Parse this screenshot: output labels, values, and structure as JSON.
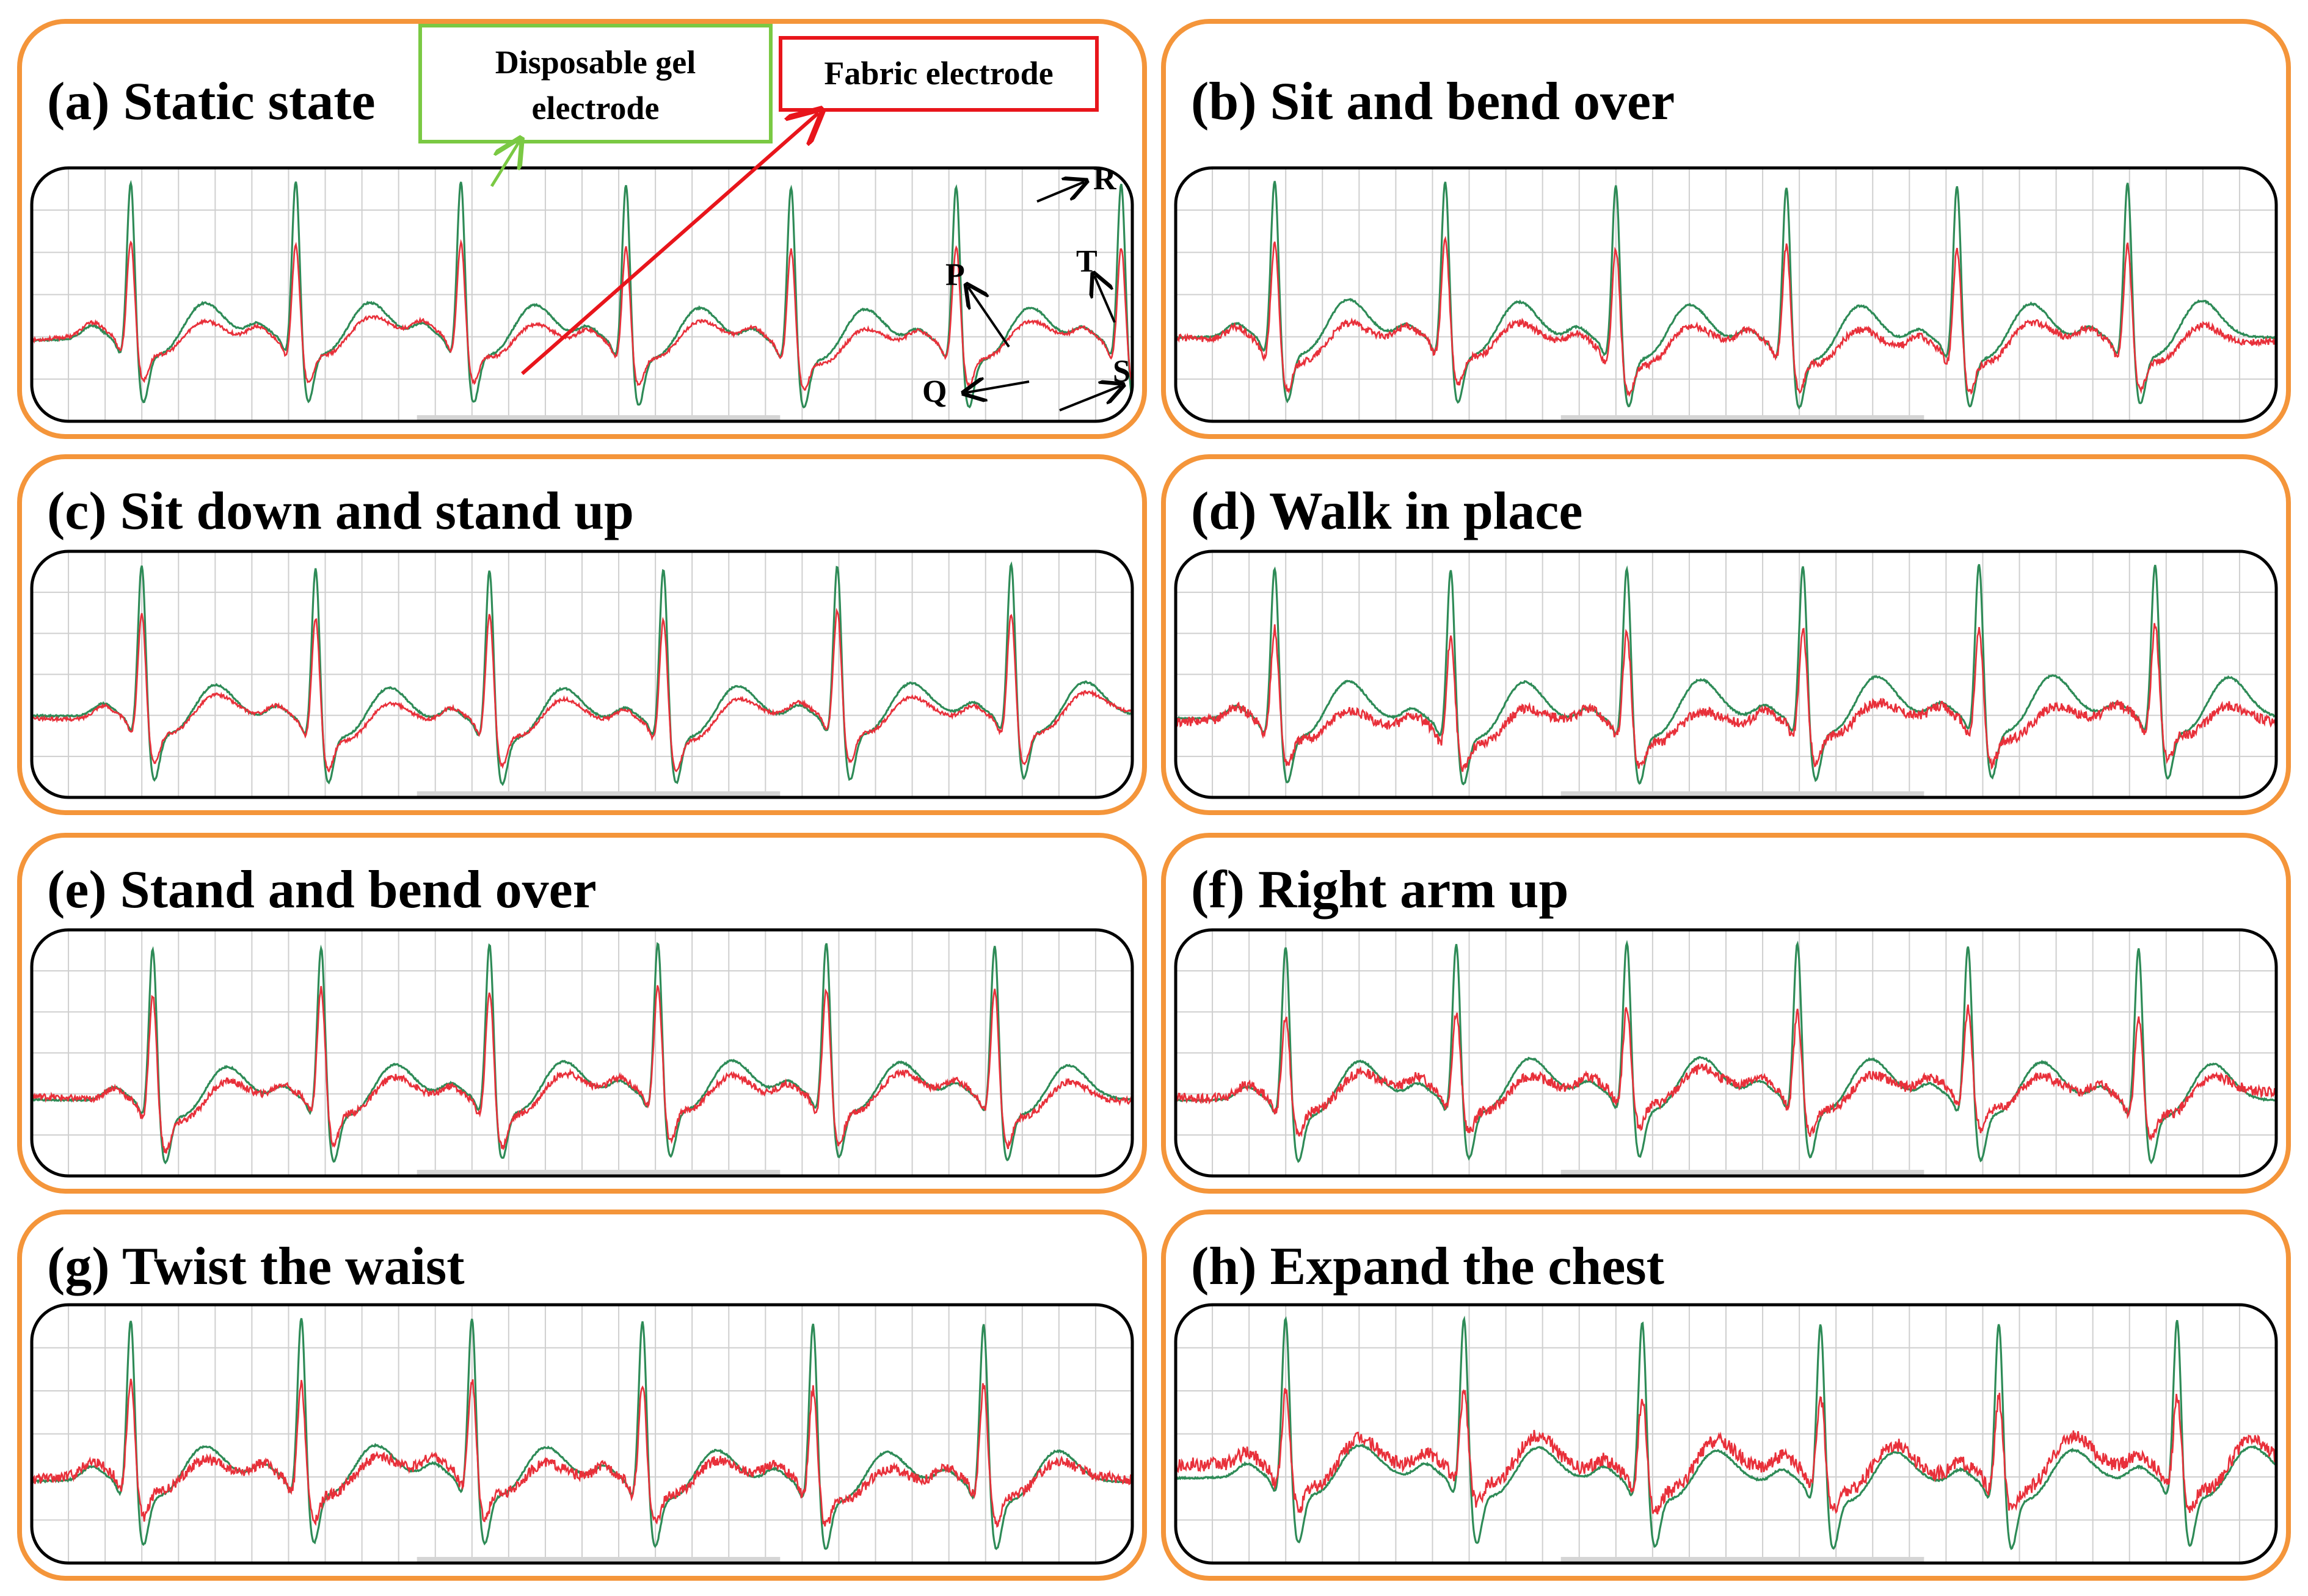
{
  "chart_data": [
    {
      "type": "line",
      "panel": "a",
      "title": "(a) Static state",
      "series": [
        {
          "name": "Disposable gel electrode",
          "color": "#2e8b57"
        },
        {
          "name": "Fabric electrode",
          "color": "#e8303a"
        }
      ],
      "beats": 7,
      "first_beat": 0.09,
      "beat_spacing": 0.15,
      "gel_r_peak": 1.0,
      "fabric_r_peak": 0.62,
      "gel_t_wave": 0.22,
      "fabric_t_wave": 0.12,
      "fabric_noise": 0.01,
      "fabric_offset": 0.0,
      "annotations": [
        "P",
        "Q",
        "R",
        "S",
        "T"
      ]
    },
    {
      "type": "line",
      "panel": "b",
      "title": "(b) Sit and bend over",
      "series": [
        {
          "name": "Disposable gel electrode",
          "color": "#2e8b57"
        },
        {
          "name": "Fabric electrode",
          "color": "#e8303a"
        }
      ],
      "beats": 6,
      "first_beat": 0.09,
      "beat_spacing": 0.155,
      "gel_r_peak": 1.0,
      "fabric_r_peak": 0.65,
      "gel_t_wave": 0.24,
      "fabric_t_wave": 0.13,
      "fabric_noise": 0.02,
      "fabric_offset": -0.02
    },
    {
      "type": "line",
      "panel": "c",
      "title": "(c) Sit down and stand up",
      "series": [
        {
          "name": "Disposable gel electrode",
          "color": "#2e8b57"
        },
        {
          "name": "Fabric electrode",
          "color": "#e8303a"
        }
      ],
      "beats": 6,
      "first_beat": 0.1,
      "beat_spacing": 0.158,
      "gel_r_peak": 1.0,
      "fabric_r_peak": 0.7,
      "gel_t_wave": 0.22,
      "fabric_t_wave": 0.14,
      "fabric_noise": 0.01,
      "fabric_offset": 0.0
    },
    {
      "type": "line",
      "panel": "d",
      "title": "(d) Walk in place",
      "series": [
        {
          "name": "Disposable gel electrode",
          "color": "#2e8b57"
        },
        {
          "name": "Fabric electrode",
          "color": "#e8303a"
        }
      ],
      "beats": 6,
      "first_beat": 0.09,
      "beat_spacing": 0.16,
      "gel_r_peak": 1.0,
      "fabric_r_peak": 0.62,
      "gel_t_wave": 0.26,
      "fabric_t_wave": 0.1,
      "fabric_noise": 0.03,
      "fabric_offset": -0.02
    },
    {
      "type": "line",
      "panel": "e",
      "title": "(e) Stand and bend over",
      "series": [
        {
          "name": "Disposable gel electrode",
          "color": "#2e8b57"
        },
        {
          "name": "Fabric electrode",
          "color": "#e8303a"
        }
      ],
      "beats": 6,
      "first_beat": 0.11,
      "beat_spacing": 0.153,
      "gel_r_peak": 1.0,
      "fabric_r_peak": 0.72,
      "gel_t_wave": 0.22,
      "fabric_t_wave": 0.14,
      "fabric_noise": 0.02,
      "fabric_offset": 0.0
    },
    {
      "type": "line",
      "panel": "f",
      "title": "(f) Right arm up",
      "series": [
        {
          "name": "Disposable gel electrode",
          "color": "#2e8b57"
        },
        {
          "name": "Fabric electrode",
          "color": "#e8303a"
        }
      ],
      "beats": 6,
      "first_beat": 0.1,
      "beat_spacing": 0.155,
      "gel_r_peak": 1.0,
      "fabric_r_peak": 0.55,
      "gel_t_wave": 0.24,
      "fabric_t_wave": 0.12,
      "fabric_noise": 0.03,
      "fabric_offset": 0.03
    },
    {
      "type": "line",
      "panel": "g",
      "title": "(g) Twist the waist",
      "series": [
        {
          "name": "Disposable gel electrode",
          "color": "#2e8b57"
        },
        {
          "name": "Fabric electrode",
          "color": "#e8303a"
        }
      ],
      "beats": 6,
      "first_beat": 0.09,
      "beat_spacing": 0.155,
      "gel_r_peak": 1.0,
      "fabric_r_peak": 0.6,
      "gel_t_wave": 0.2,
      "fabric_t_wave": 0.1,
      "fabric_noise": 0.03,
      "fabric_offset": 0.02
    },
    {
      "type": "line",
      "panel": "h",
      "title": "(h) Expand the chest",
      "series": [
        {
          "name": "Disposable gel electrode",
          "color": "#2e8b57"
        },
        {
          "name": "Fabric electrode",
          "color": "#e8303a"
        }
      ],
      "beats": 6,
      "first_beat": 0.1,
      "beat_spacing": 0.162,
      "gel_r_peak": 1.0,
      "fabric_r_peak": 0.5,
      "gel_t_wave": 0.2,
      "fabric_t_wave": 0.2,
      "fabric_noise": 0.04,
      "fabric_offset": 0.06
    }
  ],
  "legend": {
    "gel_label_line1": "Disposable gel",
    "gel_label_line2": "electrode",
    "fabric_label": "Fabric electrode",
    "gel_color": "#2e8b57",
    "fabric_color": "#e8303a"
  },
  "wave_labels": {
    "p": "P",
    "q": "Q",
    "r": "R",
    "s": "S",
    "t": "T"
  },
  "colors": {
    "panel_border": "#f4953a",
    "grid": "#cfcfcf",
    "arrow": "#000000"
  }
}
